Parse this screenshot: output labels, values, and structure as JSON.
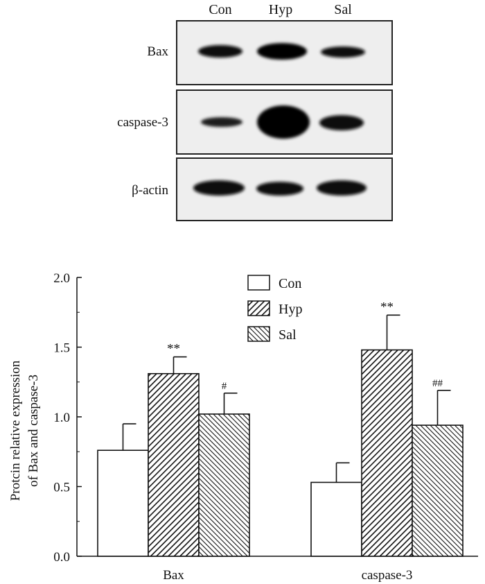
{
  "blot": {
    "lanes": [
      "Con",
      "Hyp",
      "Sal"
    ],
    "rows": [
      {
        "label": "Bax",
        "intensity": [
          0.75,
          1.0,
          0.7
        ]
      },
      {
        "label": "caspase-3",
        "intensity": [
          0.55,
          1.0,
          0.75
        ]
      },
      {
        "label": "β-actin",
        "intensity": [
          0.95,
          0.9,
          0.9
        ]
      }
    ]
  },
  "chart_data": {
    "type": "bar",
    "categories": [
      "Bax",
      "caspase-3"
    ],
    "series": [
      {
        "name": "Con",
        "values": [
          0.76,
          0.53
        ],
        "errors": [
          0.19,
          0.14
        ],
        "pattern": "none",
        "significance": [
          "",
          ""
        ]
      },
      {
        "name": "Hyp",
        "values": [
          1.31,
          1.48
        ],
        "errors": [
          0.12,
          0.25
        ],
        "pattern": "diag-right",
        "significance": [
          "**",
          "**"
        ]
      },
      {
        "name": "Sal",
        "values": [
          1.02,
          0.94
        ],
        "errors": [
          0.15,
          0.25
        ],
        "pattern": "diag-left",
        "significance": [
          "#",
          "##"
        ]
      }
    ],
    "ylabel": [
      "Protcin relative expression",
      "of Bax and caspase-3"
    ],
    "ylim": [
      0.0,
      2.0
    ],
    "yticks": [
      "0.0",
      "0.5",
      "1.0",
      "1.5",
      "2.0"
    ],
    "legend_position": "top-center",
    "grid": false
  }
}
